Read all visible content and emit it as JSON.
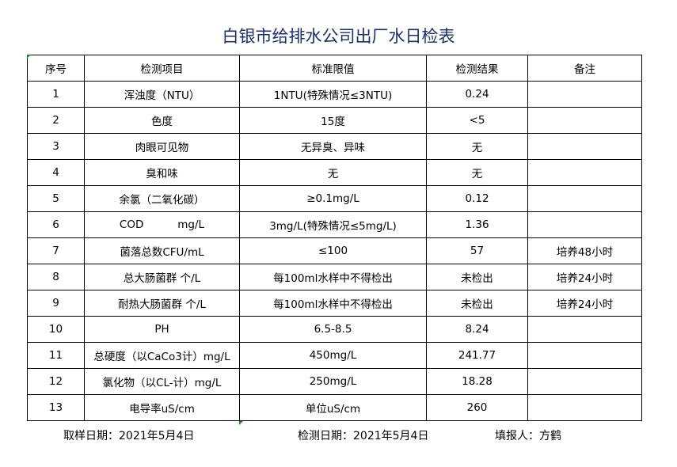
{
  "title": "白银市给排水公司出厂水日检表",
  "headers": [
    "序号",
    "检测项目",
    "标准限值",
    "检测结果",
    "备注"
  ],
  "rows": [
    [
      "1",
      "浑浊度（NTU）",
      "1NTU(特殊情况≤3NTU)",
      "0.24",
      ""
    ],
    [
      "2",
      "色度",
      "15度",
      "<5",
      ""
    ],
    [
      "3",
      "肉眼可见物",
      "无异臭、异味",
      "无",
      ""
    ],
    [
      "4",
      "臭和味",
      "无",
      "无",
      ""
    ],
    [
      "5",
      "余氯（二氧化碳）",
      "≥0.1mg/L",
      "0.12",
      ""
    ],
    [
      "6",
      "COD          mg/L",
      "3mg/L(特殊情况≤5mg/L)",
      "1.36",
      ""
    ],
    [
      "7",
      "菌落总数CFU/mL",
      "≤100",
      "57",
      "培养48小时"
    ],
    [
      "8",
      "总大肠菌群 个/L",
      "每100ml水样中不得检出",
      "未检出",
      "培养24小时"
    ],
    [
      "9",
      "耐热大肠菌群 个/L",
      "每100ml水样中不得检出",
      "未检出",
      "培养24小时"
    ],
    [
      "10",
      "PH",
      "6.5-8.5",
      "8.24",
      ""
    ],
    [
      "11",
      "总硬度（以CaCo3计）mg/L",
      "450mg/L",
      "241.77",
      ""
    ],
    [
      "12",
      "氯化物（以CL-计）mg/L",
      "250mg/L",
      "18.28",
      ""
    ],
    [
      "13",
      "电导率uS/cm",
      "单位uS/cm",
      "260",
      ""
    ]
  ],
  "footer": {
    "sampling_date": "取样日期：2021年5月4日",
    "test_date": "检测日期：2021年5月4日",
    "reporter": "填报人：方鹤"
  }
}
